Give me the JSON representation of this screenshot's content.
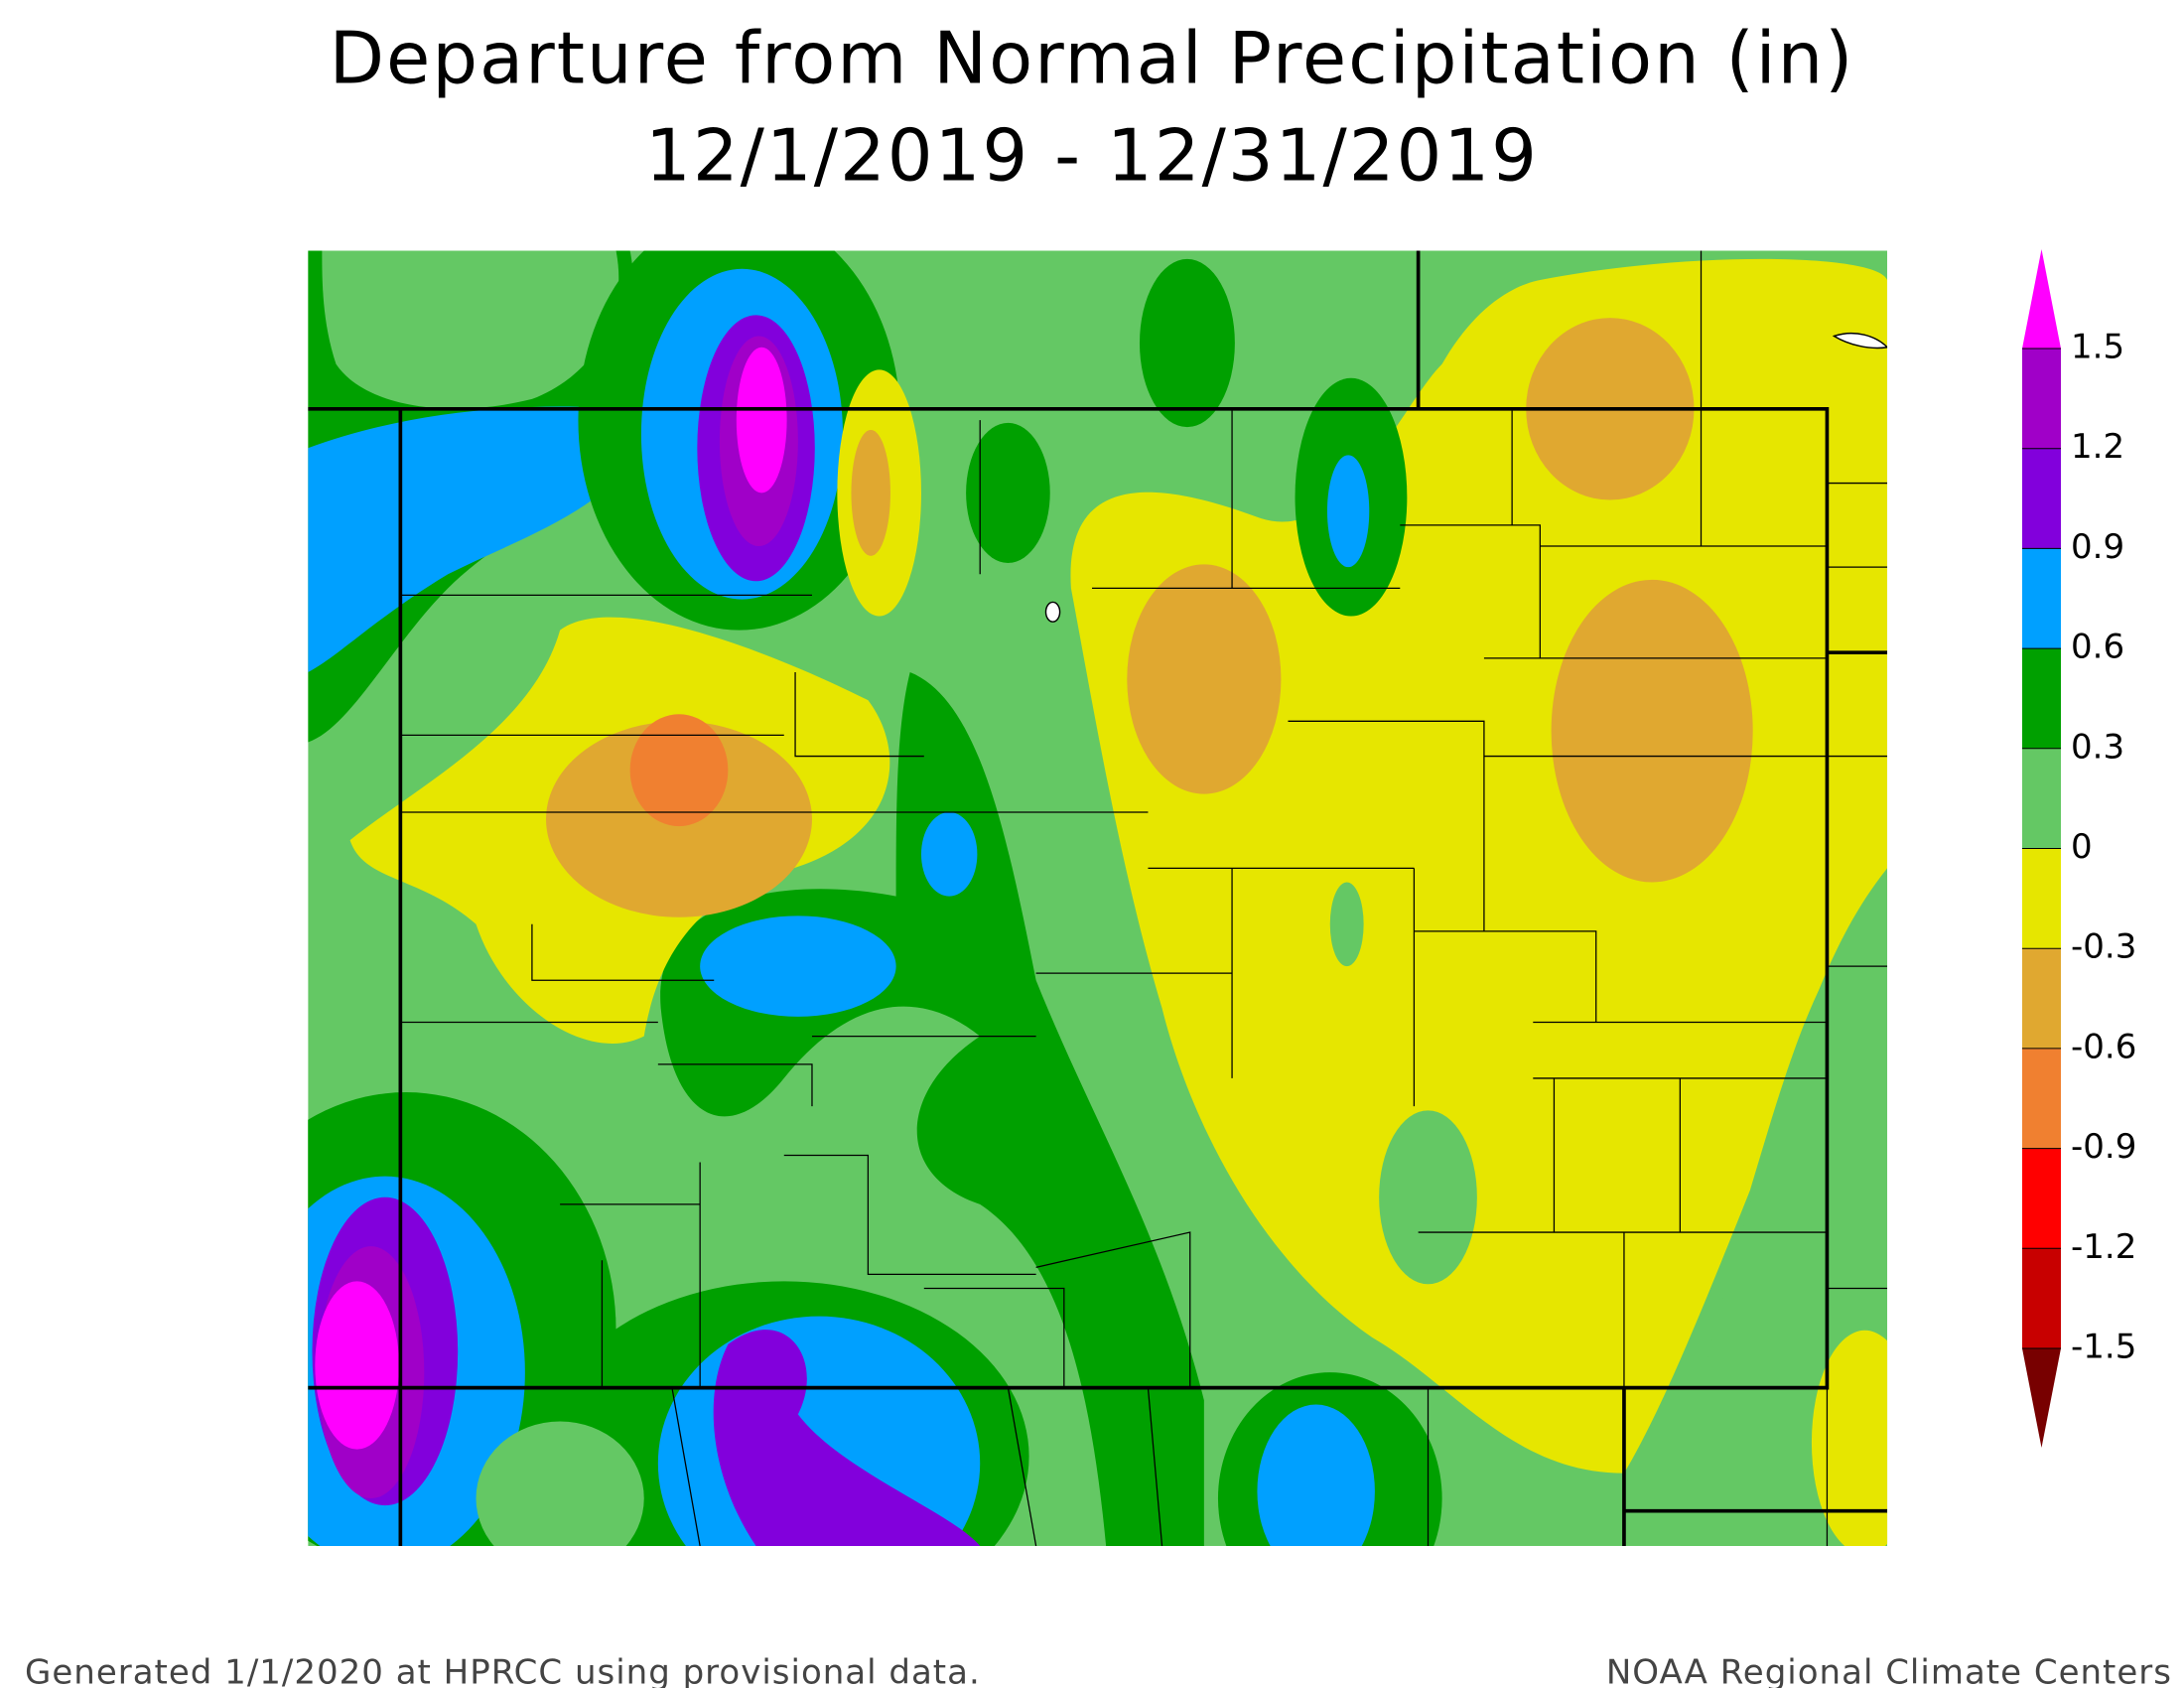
{
  "header": {
    "title": "Departure from Normal Precipitation (in)",
    "subtitle": "12/1/2019 - 12/31/2019"
  },
  "legend": {
    "ticks": [
      1.5,
      1.2,
      0.9,
      0.6,
      0.3,
      0,
      -0.3,
      -0.6,
      -0.9,
      -1.2,
      -1.5
    ],
    "colors": [
      "#ff00ff",
      "#a000c8",
      "#8200dc",
      "#00a0ff",
      "#00a000",
      "#64c864",
      "#e6e600",
      "#e0a830",
      "#f08030",
      "#ff0000",
      "#c80000",
      "#780000"
    ]
  },
  "footer": {
    "left": "Generated 1/1/2020 at HPRCC using provisional data.",
    "right": "NOAA Regional Climate Centers"
  }
}
